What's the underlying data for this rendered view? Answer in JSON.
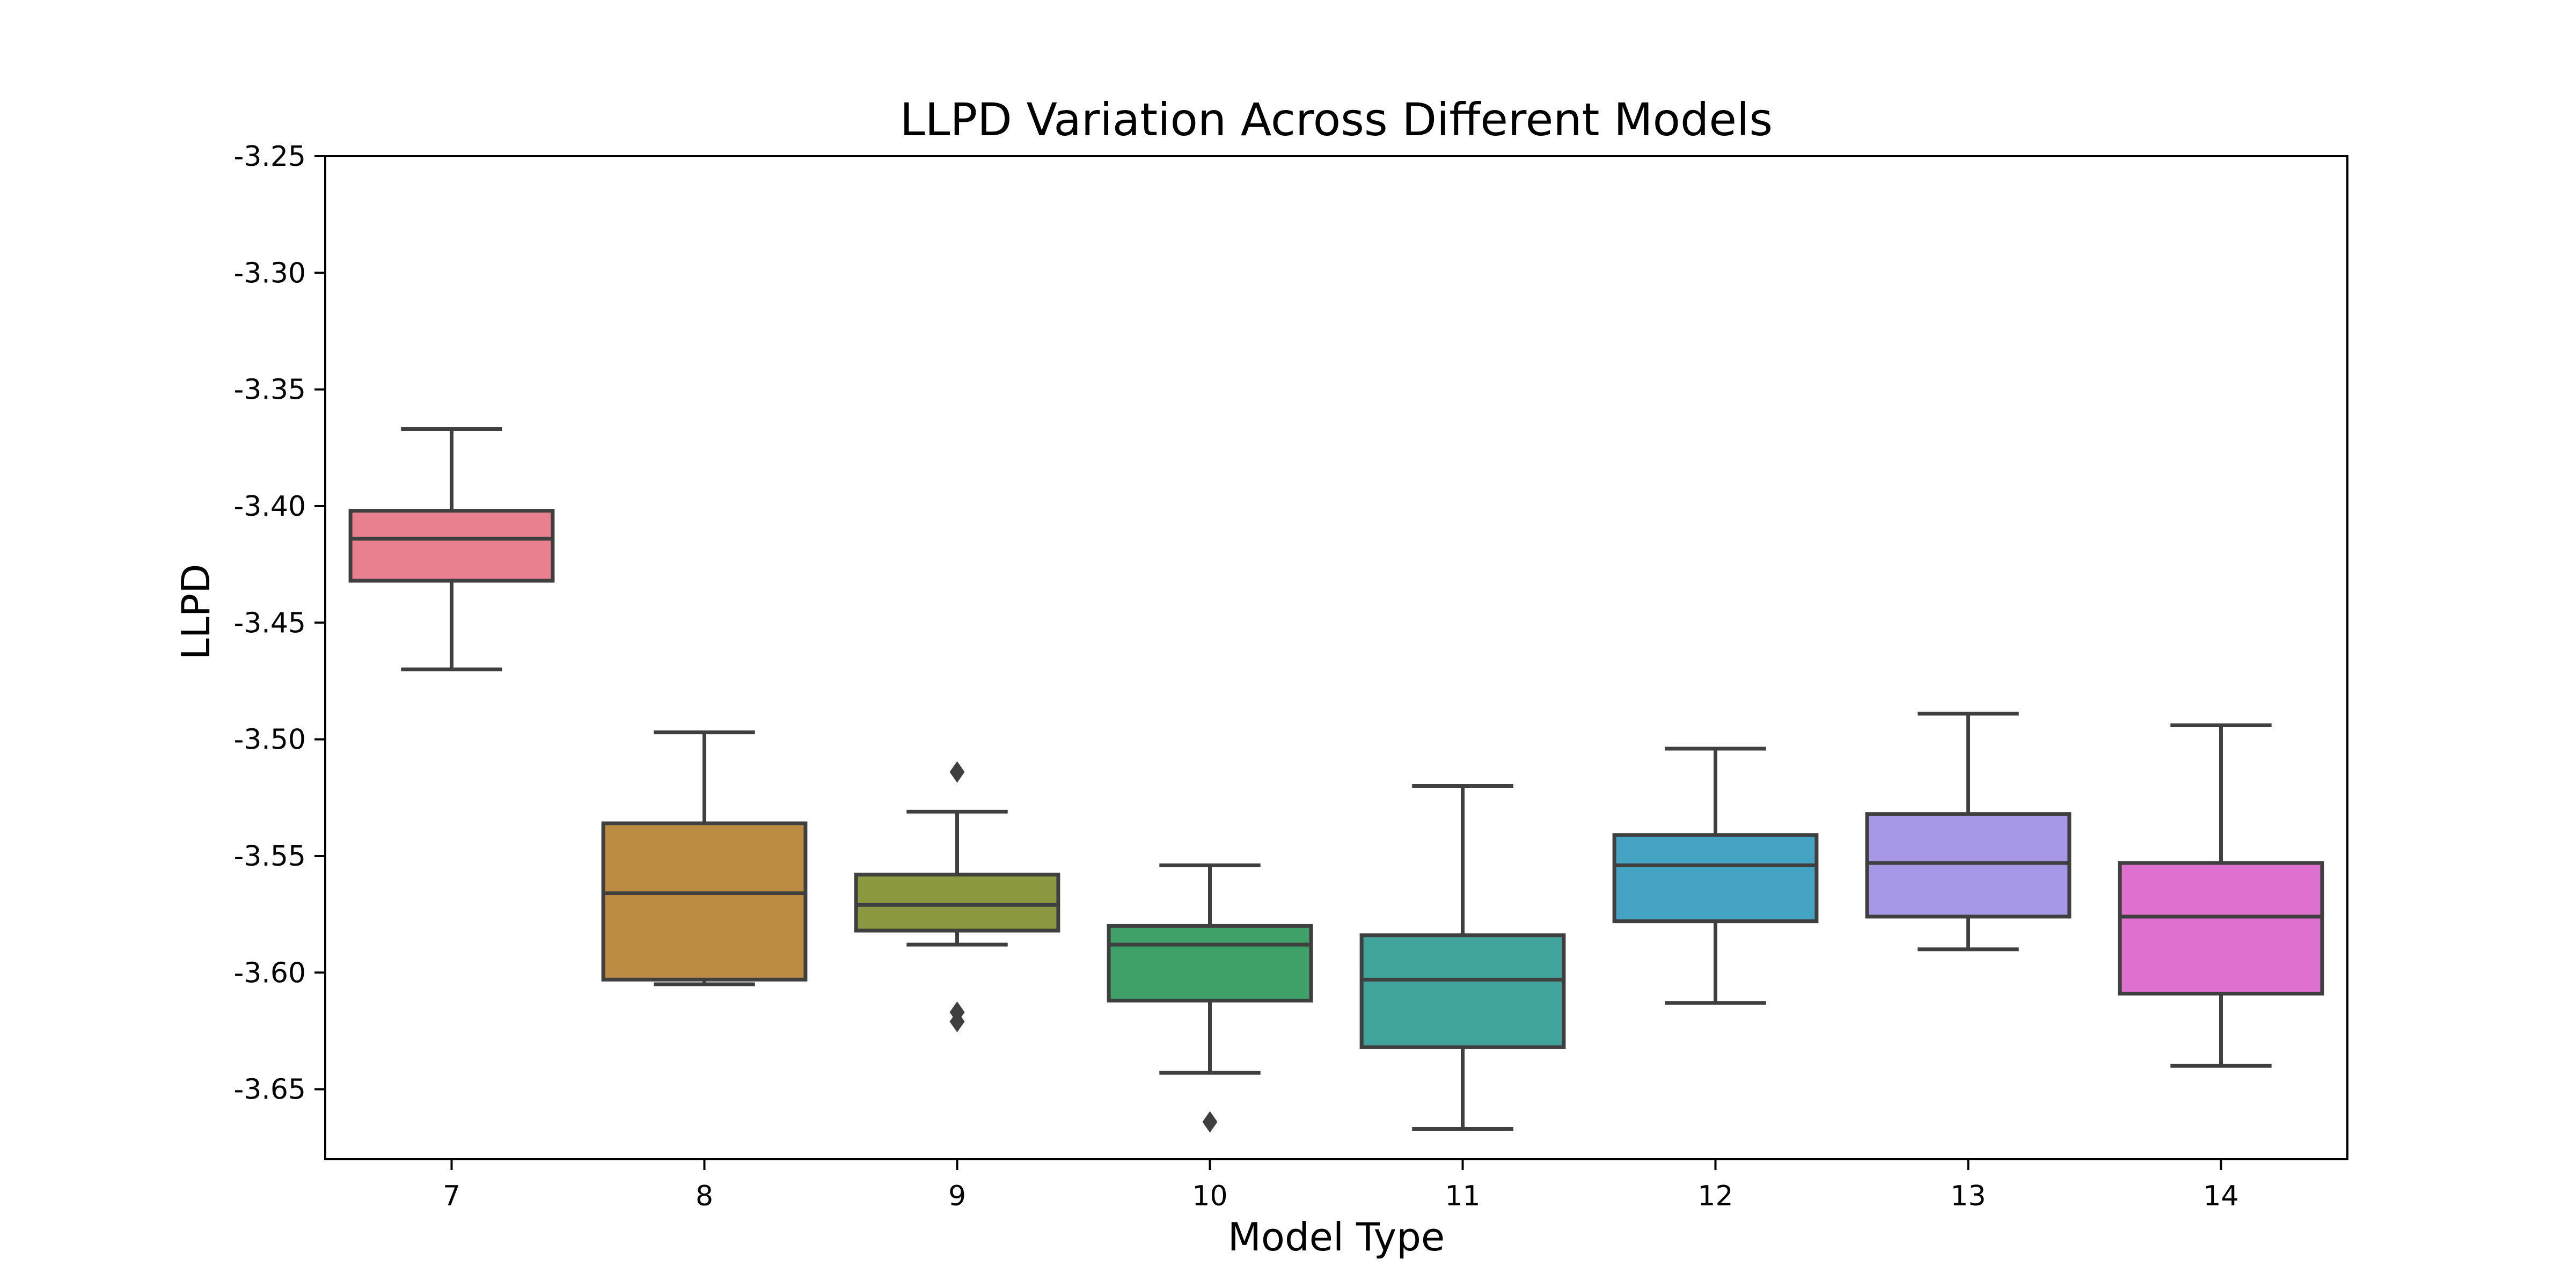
{
  "chart_data": {
    "type": "box",
    "title": "LLPD Variation Across Different Models",
    "xlabel": "Model Type",
    "ylabel": "LLPD",
    "ylim": [
      -3.68,
      -3.25
    ],
    "yticks": [
      "-3.25",
      "-3.30",
      "-3.35",
      "-3.40",
      "-3.45",
      "-3.50",
      "-3.55",
      "-3.60",
      "-3.65"
    ],
    "categories": [
      "7",
      "8",
      "9",
      "10",
      "11",
      "12",
      "13",
      "14"
    ],
    "boxes": [
      {
        "category": "7",
        "whisker_low": -3.47,
        "q1": -3.432,
        "median": -3.414,
        "q3": -3.402,
        "whisker_high": -3.367,
        "outliers": [],
        "color": "#e8808f"
      },
      {
        "category": "8",
        "whisker_low": -3.605,
        "q1": -3.603,
        "median": -3.566,
        "q3": -3.536,
        "whisker_high": -3.497,
        "outliers": [],
        "color": "#bb8c42"
      },
      {
        "category": "9",
        "whisker_low": -3.588,
        "q1": -3.582,
        "median": -3.571,
        "q3": -3.558,
        "whisker_high": -3.531,
        "outliers": [
          -3.514,
          -3.617,
          -3.621
        ],
        "color": "#8b9840"
      },
      {
        "category": "10",
        "whisker_low": -3.643,
        "q1": -3.612,
        "median": -3.588,
        "q3": -3.58,
        "whisker_high": -3.554,
        "outliers": [
          -3.664
        ],
        "color": "#3fa068"
      },
      {
        "category": "11",
        "whisker_low": -3.667,
        "q1": -3.632,
        "median": -3.603,
        "q3": -3.584,
        "whisker_high": -3.52,
        "outliers": [],
        "color": "#40a39c"
      },
      {
        "category": "12",
        "whisker_low": -3.613,
        "q1": -3.578,
        "median": -3.554,
        "q3": -3.541,
        "whisker_high": -3.504,
        "outliers": [],
        "color": "#45a3c3"
      },
      {
        "category": "13",
        "whisker_low": -3.59,
        "q1": -3.576,
        "median": -3.553,
        "q3": -3.532,
        "whisker_high": -3.489,
        "outliers": [],
        "color": "#a896e6"
      },
      {
        "category": "14",
        "whisker_low": -3.64,
        "q1": -3.609,
        "median": -3.576,
        "q3": -3.553,
        "whisker_high": -3.494,
        "outliers": [],
        "color": "#e070cf"
      }
    ],
    "grid": false,
    "legend": "none"
  }
}
